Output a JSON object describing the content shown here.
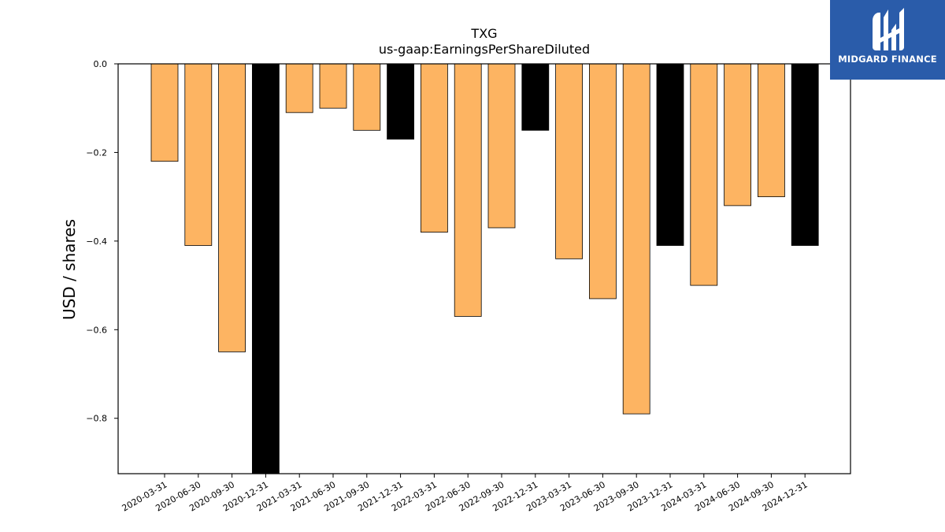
{
  "logo": {
    "text": "MIDGARD FINANCE",
    "background": "#2a5caa"
  },
  "chart_data": {
    "type": "bar",
    "title": "TXG",
    "subtitle": "us-gaap:EarningsPerShareDiluted",
    "xlabel": "",
    "ylabel": "USD / shares",
    "ylim": [
      -0.925,
      0.0
    ],
    "yticks": [
      0.0,
      -0.2,
      -0.4,
      -0.6,
      -0.8
    ],
    "ytick_labels": [
      "0.0",
      "−0.2",
      "−0.4",
      "−0.6",
      "−0.8"
    ],
    "grid": false,
    "colors": {
      "quarter": "#fdb462",
      "year_end": "#000000",
      "edge": "#000000"
    },
    "categories": [
      "2020-03-31",
      "2020-06-30",
      "2020-09-30",
      "2020-12-31",
      "2021-03-31",
      "2021-06-30",
      "2021-09-30",
      "2021-12-31",
      "2022-03-31",
      "2022-06-30",
      "2022-09-30",
      "2022-12-31",
      "2023-03-31",
      "2023-06-30",
      "2023-09-30",
      "2023-12-31",
      "2024-03-31",
      "2024-06-30",
      "2024-09-30",
      "2024-12-31"
    ],
    "values": [
      -0.22,
      -0.41,
      -0.65,
      -0.95,
      -0.11,
      -0.1,
      -0.15,
      -0.17,
      -0.38,
      -0.57,
      -0.37,
      -0.15,
      -0.44,
      -0.53,
      -0.79,
      -0.41,
      -0.5,
      -0.32,
      -0.3,
      -0.41
    ],
    "year_end": [
      false,
      false,
      false,
      true,
      false,
      false,
      false,
      true,
      false,
      false,
      false,
      true,
      false,
      false,
      false,
      true,
      false,
      false,
      false,
      true
    ]
  }
}
